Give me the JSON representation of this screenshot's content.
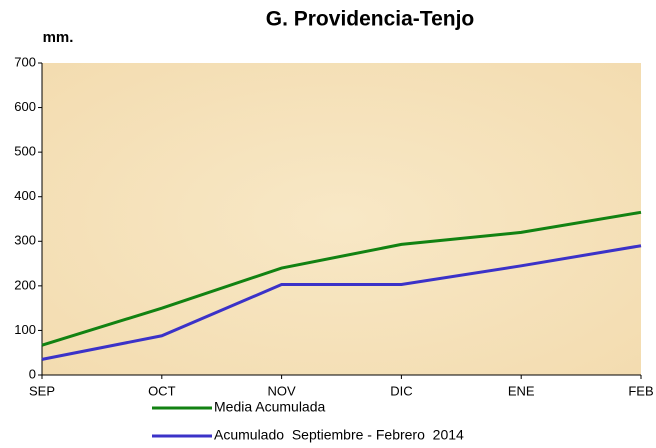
{
  "chart_data": {
    "type": "line",
    "title": "G. Providencia-Tenjo",
    "y_label": "mm.",
    "categories": [
      "SEP",
      "OCT",
      "NOV",
      "DIC",
      "ENE",
      "FEB"
    ],
    "series": [
      {
        "name": "Media Acumulada",
        "color": "#128212",
        "values": [
          67,
          150,
          240,
          293,
          320,
          365
        ]
      },
      {
        "name": "Acumulado  Septiembre - Febrero  2014",
        "color": "#3b32c8",
        "values": [
          35,
          88,
          203,
          203,
          245,
          290
        ]
      }
    ],
    "ylim": [
      0,
      700
    ],
    "yticks": [
      0,
      100,
      200,
      300,
      400,
      500,
      600,
      700
    ],
    "grid": false
  }
}
